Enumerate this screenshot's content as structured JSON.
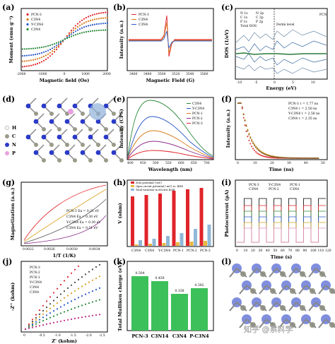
{
  "panels": {
    "a": {
      "label": "(a)",
      "xlabel": "Magnetic field (Oe)",
      "ylabel": "Moment (emu g⁻¹)",
      "xticks": [
        "-2000",
        "-1000",
        "0",
        "1000",
        "2000"
      ],
      "legend": [
        "PCN-3",
        "C3N4",
        "Y-C3N4",
        "C3N4"
      ],
      "colors": [
        "#e0242a",
        "#d87a1a",
        "#2a58c8",
        "#2a8a3a"
      ]
    },
    "b": {
      "label": "(b)",
      "xlabel": "Magnetic Field (G)",
      "ylabel": "Intensity (a.u.)",
      "xticks": [
        "3460",
        "3480",
        "3500",
        "3520",
        "3540",
        "3560"
      ],
      "legend": [
        "PCN-3",
        "C3N4",
        "C3N4"
      ]
    },
    "c": {
      "label": "(c)",
      "xlabel": "Energy (eV)",
      "ylabel": "DOS (1/eV)",
      "annotation": "Fermi level",
      "xticks": [
        "-10",
        "-5",
        "0",
        "5",
        "10"
      ],
      "title": "PCN",
      "legend": [
        "N 1s",
        "N 2p",
        "C 1s",
        "C 2p",
        "P 1s",
        "P 2p",
        "Total DOS"
      ]
    },
    "d": {
      "label": "(d)",
      "atoms": [
        "H",
        "C",
        "N",
        "P"
      ]
    },
    "e": {
      "label": "(e)",
      "xlabel": "Wavelength (nm)",
      "ylabel": "Intensity (CPS)",
      "xticks": [
        "400",
        "450",
        "500",
        "550",
        "600",
        "650",
        "700"
      ],
      "legend": [
        "C3N4",
        "Y-C3N4",
        "PCN-1",
        "PCN-2",
        "PCN-3"
      ]
    },
    "f": {
      "label": "(f)",
      "xlabel": "Time (ns)",
      "ylabel": "Intensity (a.u.)",
      "xticks": [
        "0",
        "10",
        "20",
        "30",
        "40",
        "50"
      ],
      "legend": [
        "PCN-3  τ = 1.77 ns",
        "C3N4  τ = 2.50 ns",
        "Y-C3N4  τ = 2.50 ns",
        "C3N4  τ = 2.35 ns"
      ]
    },
    "g": {
      "label": "(g)",
      "xlabel": "1/T (1/K)",
      "ylabel": "Magnetization (a.u.)",
      "xticks": [
        "0.0022",
        "0.0026",
        "0.0030",
        "0.0034"
      ],
      "legend": [
        "PCN-3  Ea = 0.21 eV",
        "C3N4  Ea = 0.30 eV",
        "Y-C3N4  Ea = 0.30 eV",
        "C3N4  Ea = 0.51 eV"
      ]
    },
    "h": {
      "label": "(h)",
      "ylabel": "V (ohm)",
      "categories": [
        "C3N4",
        "C3N4",
        "Y-C3N4",
        "PCN-1",
        "PCN-2",
        "PCN-3"
      ],
      "legend": [
        "Zeta potential (-mV)",
        "Open circuit potential (-mV) vs. RHE",
        "Total variation in electric field"
      ]
    },
    "i": {
      "label": "(i)",
      "xlabel": "Time (s)",
      "ylabel": "Photocurrent (μA)",
      "xticks": [
        "0",
        "10",
        "20",
        "30",
        "40",
        "50",
        "60",
        "70",
        "80",
        "90",
        "100",
        "110",
        "120"
      ],
      "legend": [
        "PCN-3",
        "Y-C3N4",
        "PCN-1",
        "C3N4",
        "PCN-2",
        "C3N4"
      ]
    },
    "j": {
      "label": "(j)",
      "xlabel": "Z' (kohm)",
      "ylabel": "-Z'' (kohm)",
      "xticks": [
        "0",
        "-0.5",
        "-1.0",
        "-1.5",
        "-2.0",
        "-2.5"
      ],
      "legend": [
        "PCN-3",
        "PCN-2",
        "PCN-1",
        "Y-C3N4",
        "C3N4",
        "C3N4"
      ]
    },
    "k": {
      "label": "(k)",
      "ylabel": "Total Mulliken charge (eV)",
      "values_text": [
        "0.504",
        "0.459",
        "0.338",
        "0.392"
      ],
      "categories": [
        "PCN-3",
        "C3N14",
        "C3N4",
        "P-C3N4"
      ]
    },
    "l": {
      "label": "(l)"
    }
  },
  "watermark": "知乎 @系科学"
}
